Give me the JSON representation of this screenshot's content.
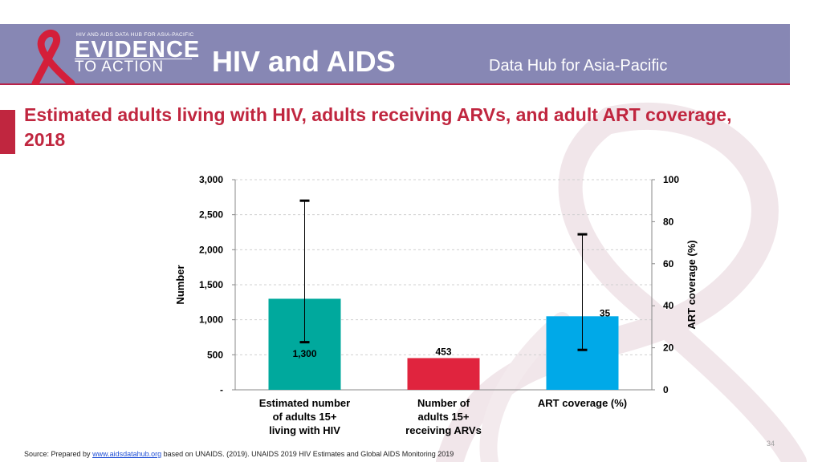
{
  "header": {
    "logo_small": "HIV AND AIDS DATA HUB FOR ASIA-PACIFIC",
    "logo_evidence": "EVIDENCE",
    "logo_action": "TO ACTION",
    "title": "HIV and AIDS",
    "subtitle": "Data Hub for Asia-Pacific",
    "bg_color": "#8787b4",
    "accent_color": "#b8234a"
  },
  "slide": {
    "title": "Estimated adults living with HIV, adults receiving ARVs, and adult ART coverage, 2018",
    "page_number": "34"
  },
  "footer": {
    "prefix": "Source: Prepared by ",
    "link_text": "www.aidsdatahub.org",
    "suffix": " based on UNAIDS. (2019). UNAIDS 2019 HIV Estimates and Global AIDS Monitoring 2019"
  },
  "chart_data": {
    "type": "bar",
    "categories": [
      "Estimated number of adults 15+ living with HIV",
      "Number of adults 15+ receiving ARVs",
      "ART coverage (%)"
    ],
    "category_lines": [
      [
        "Estimated number",
        "of adults 15+",
        "living with HIV"
      ],
      [
        "Number of",
        "adults 15+",
        "receiving ARVs"
      ],
      [
        "ART coverage (%)"
      ]
    ],
    "bars": [
      {
        "value": 1300,
        "axis": "left",
        "label": "1,300",
        "color": "#00a99d",
        "error_low": 680,
        "error_high": 2700
      },
      {
        "value": 453,
        "axis": "left",
        "label": "453",
        "color": "#e0243e"
      },
      {
        "value": 35,
        "axis": "right",
        "label": "35",
        "color": "#00a9e8",
        "error_low": 19,
        "error_high": 74
      }
    ],
    "left_axis": {
      "label": "Number",
      "ylim": [
        0,
        3000
      ],
      "ticks": [
        0,
        500,
        1000,
        1500,
        2000,
        2500,
        3000
      ],
      "tick_labels": [
        "-",
        "500",
        "1,000",
        "1,500",
        "2,000",
        "2,500",
        "3,000"
      ]
    },
    "right_axis": {
      "label": "ART coverage (%)",
      "ylim": [
        0,
        100
      ],
      "ticks": [
        0,
        20,
        40,
        60,
        80,
        100
      ],
      "tick_labels": [
        "0",
        "20",
        "40",
        "60",
        "80",
        "100"
      ]
    },
    "grid": true
  }
}
